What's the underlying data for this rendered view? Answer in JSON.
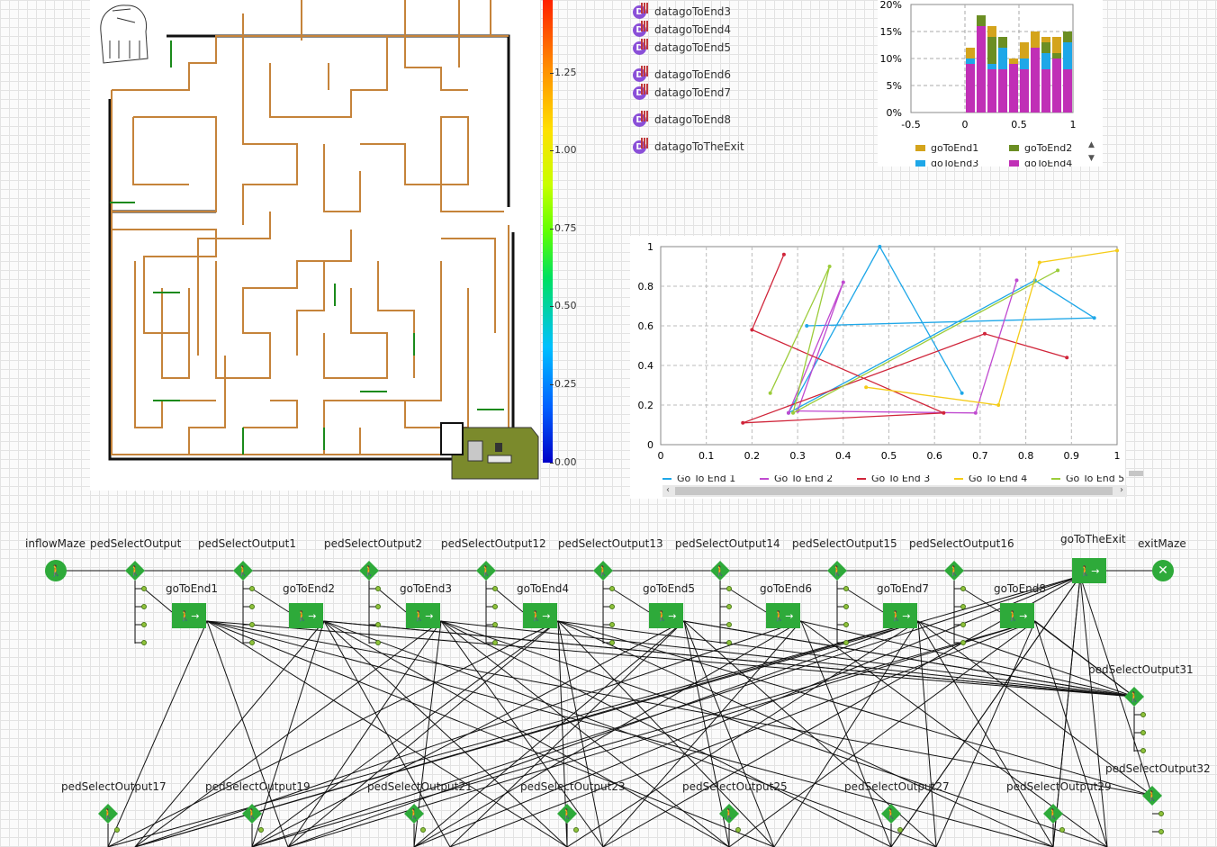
{
  "colorbar": {
    "ticks": [
      "1.25",
      "1.00",
      "0.75",
      "0.50",
      "0.25",
      "0.00"
    ]
  },
  "datasets": [
    "datagoToEnd3",
    "datagoToEnd4",
    "datagoToEnd5",
    "datagoToEnd6",
    "datagoToEnd7",
    "datagoToEnd8",
    "datagoToTheExit"
  ],
  "dataset_icon": "D",
  "histogram": {
    "type": "bar",
    "y_ticks": [
      "20%",
      "15%",
      "10%",
      "5%",
      "0%"
    ],
    "x_ticks": [
      "-0.5",
      "0",
      "0.5",
      "1"
    ],
    "legend": [
      "goToEnd1",
      "goToEnd2",
      "goToEnd3",
      "goToEnd4"
    ],
    "colors": {
      "goToEnd1": "#d4a41c",
      "goToEnd2": "#6b8e23",
      "goToEnd3": "#1ea7e8",
      "goToEnd4": "#c02fb6"
    }
  },
  "chart_data": {
    "type": "line",
    "xlim": [
      0,
      1
    ],
    "ylim": [
      0,
      1
    ],
    "x_ticks": [
      "0",
      "0.1",
      "0.2",
      "0.3",
      "0.4",
      "0.5",
      "0.6",
      "0.7",
      "0.8",
      "0.9",
      "1"
    ],
    "y_ticks": [
      "0",
      "0.2",
      "0.4",
      "0.6",
      "0.8",
      "1"
    ],
    "series": [
      {
        "name": "Go To End 1",
        "color": "#1ea7e8",
        "points": [
          [
            0.32,
            0.6
          ],
          [
            0.95,
            0.64
          ],
          [
            0.82,
            0.83
          ],
          [
            0.28,
            0.16
          ],
          [
            0.48,
            1.0
          ],
          [
            0.66,
            0.26
          ]
        ]
      },
      {
        "name": "Go To End 2",
        "color": "#c04ad0",
        "points": [
          [
            0.28,
            0.16
          ],
          [
            0.4,
            0.82
          ],
          [
            0.3,
            0.17
          ],
          [
            0.69,
            0.16
          ],
          [
            0.78,
            0.83
          ]
        ]
      },
      {
        "name": "Go To End 3",
        "color": "#d0253a",
        "points": [
          [
            0.27,
            0.96
          ],
          [
            0.2,
            0.58
          ],
          [
            0.62,
            0.16
          ],
          [
            0.18,
            0.11
          ],
          [
            0.71,
            0.56
          ],
          [
            0.89,
            0.44
          ]
        ]
      },
      {
        "name": "Go To End 4",
        "color": "#f5cc18",
        "points": [
          [
            0.45,
            0.29
          ],
          [
            0.74,
            0.2
          ],
          [
            0.83,
            0.92
          ],
          [
            1.0,
            0.98
          ]
        ]
      },
      {
        "name": "Go To End 5",
        "color": "#9ccc3a",
        "points": [
          [
            0.24,
            0.26
          ],
          [
            0.37,
            0.9
          ],
          [
            0.29,
            0.16
          ],
          [
            0.87,
            0.88
          ]
        ]
      }
    ]
  },
  "flowchart": {
    "top_labels": [
      "inflowMaze",
      "pedSelectOutput",
      "pedSelectOutput1",
      "pedSelectOutput2",
      "pedSelectOutput12",
      "pedSelectOutput13",
      "pedSelectOutput14",
      "pedSelectOutput15",
      "pedSelectOutput16",
      "goToTheExit",
      "exitMaze"
    ],
    "goto_labels": [
      "goToEnd1",
      "goToEnd2",
      "goToEnd3",
      "goToEnd4",
      "goToEnd5",
      "goToEnd6",
      "goToEnd7",
      "goToEnd8"
    ],
    "right_labels": [
      "pedSelectOutput31",
      "pedSelectOutput32"
    ],
    "bottom_labels": [
      "pedSelectOutput17",
      "pedSelectOutput19",
      "pedSelectOutput21",
      "pedSelectOutput23",
      "pedSelectOutput25",
      "pedSelectOutput27",
      "pedSelectOutput29"
    ]
  }
}
